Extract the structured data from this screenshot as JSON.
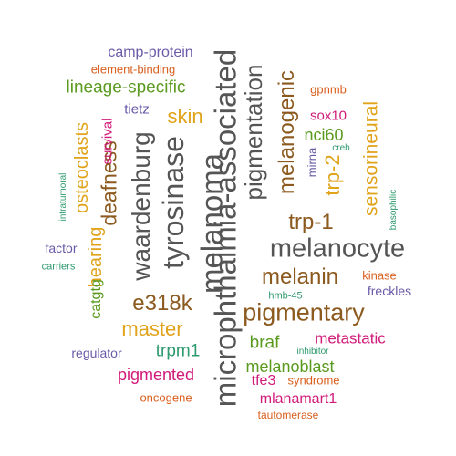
{
  "word_cloud": {
    "words": [
      {
        "id": "w1",
        "text": "microphthalmia-associated",
        "color": "#555555"
      },
      {
        "id": "w2",
        "text": "melanoma",
        "color": "#555555"
      },
      {
        "id": "w3",
        "text": "melanocyte",
        "color": "#555555"
      },
      {
        "id": "w4",
        "text": "tyrosinase",
        "color": "#555555"
      },
      {
        "id": "w5",
        "text": "waardenburg",
        "color": "#555555"
      },
      {
        "id": "w6",
        "text": "pigmentation",
        "color": "#555555"
      },
      {
        "id": "w7",
        "text": "pigmentary",
        "color": "#8c5a1f"
      },
      {
        "id": "w8",
        "text": "melanin",
        "color": "#8c5a1f"
      },
      {
        "id": "w9",
        "text": "melanogenic",
        "color": "#8c5a1f"
      },
      {
        "id": "w10",
        "text": "trp-1",
        "color": "#8c5a1f"
      },
      {
        "id": "w11",
        "text": "deafness",
        "color": "#8c5a1f"
      },
      {
        "id": "w12",
        "text": "e318k",
        "color": "#8c5a1f"
      },
      {
        "id": "w13",
        "text": "master",
        "color": "#e0a31a"
      },
      {
        "id": "w14",
        "text": "skin",
        "color": "#e0a31a"
      },
      {
        "id": "w15",
        "text": "sensorineural",
        "color": "#e0a31a"
      },
      {
        "id": "w16",
        "text": "trp-2",
        "color": "#e0a31a"
      },
      {
        "id": "w17",
        "text": "osteoclasts",
        "color": "#e0a31a"
      },
      {
        "id": "w18",
        "text": "hearing",
        "color": "#e0a31a"
      },
      {
        "id": "w19",
        "text": "lineage-specific",
        "color": "#5a9a1e"
      },
      {
        "id": "w20",
        "text": "braf",
        "color": "#5a9a1e"
      },
      {
        "id": "w21",
        "text": "melanoblast",
        "color": "#5a9a1e"
      },
      {
        "id": "w22",
        "text": "trpm1",
        "color": "#2e9a6e"
      },
      {
        "id": "w23",
        "text": "nci60",
        "color": "#5a9a1e"
      },
      {
        "id": "w24",
        "text": "catgtg",
        "color": "#5a9a1e"
      },
      {
        "id": "w25",
        "text": "pigmented",
        "color": "#d11a7a"
      },
      {
        "id": "w26",
        "text": "metastatic",
        "color": "#d11a7a"
      },
      {
        "id": "w27",
        "text": "mlanamart1",
        "color": "#d11a7a"
      },
      {
        "id": "w28",
        "text": "tfe3",
        "color": "#d11a7a"
      },
      {
        "id": "w29",
        "text": "survival",
        "color": "#d11a7a"
      },
      {
        "id": "w30",
        "text": "sox10",
        "color": "#d11a7a"
      },
      {
        "id": "w31",
        "text": "kinase",
        "color": "#d95f1e"
      },
      {
        "id": "w32",
        "text": "gpnmb",
        "color": "#d95f1e"
      },
      {
        "id": "w33",
        "text": "syndrome",
        "color": "#d95f1e"
      },
      {
        "id": "w34",
        "text": "oncogene",
        "color": "#d95f1e"
      },
      {
        "id": "w35",
        "text": "tautomerase",
        "color": "#d95f1e"
      },
      {
        "id": "w36",
        "text": "element-binding",
        "color": "#d95f1e"
      },
      {
        "id": "w37",
        "text": "camp-protein",
        "color": "#6a5aa8"
      },
      {
        "id": "w38",
        "text": "tietz",
        "color": "#6a5aa8"
      },
      {
        "id": "w39",
        "text": "freckles",
        "color": "#6a5aa8"
      },
      {
        "id": "w40",
        "text": "factor",
        "color": "#6a5aa8"
      },
      {
        "id": "w41",
        "text": "regulator",
        "color": "#6a5aa8"
      },
      {
        "id": "w42",
        "text": "mirna",
        "color": "#6a5aa8"
      },
      {
        "id": "w43",
        "text": "creb",
        "color": "#2e9a6e"
      },
      {
        "id": "w44",
        "text": "hmb-45",
        "color": "#2e9a6e"
      },
      {
        "id": "w45",
        "text": "inhibitor",
        "color": "#2e9a6e"
      },
      {
        "id": "w46",
        "text": "carriers",
        "color": "#2e9a6e"
      },
      {
        "id": "w47",
        "text": "intratumoral",
        "color": "#2e9a6e"
      },
      {
        "id": "w48",
        "text": "basophilic",
        "color": "#2e9a6e"
      }
    ]
  }
}
